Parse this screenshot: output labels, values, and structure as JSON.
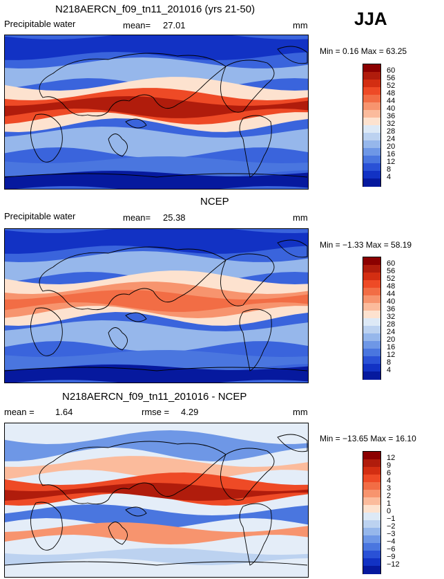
{
  "season": "JJA",
  "panels": [
    {
      "title": "N218AERCN_f09_tn11_201016 (yrs 21-50)",
      "left_label": "Precipitable water",
      "mid_label": "mean=",
      "mid_value": "27.01",
      "right_label": "",
      "right_value": "",
      "units": "mm",
      "minmax": "Min =   0.16 Max =  63.25",
      "colorbar": {
        "levels": [
          "60",
          "56",
          "52",
          "48",
          "44",
          "40",
          "36",
          "32",
          "28",
          "24",
          "20",
          "16",
          "12",
          "8",
          "4"
        ],
        "colors": [
          "#8b0000",
          "#b01c0c",
          "#d32e12",
          "#ee4a26",
          "#f26d45",
          "#f7946e",
          "#fbbb9c",
          "#fde2cf",
          "#dde9f6",
          "#bcd2f0",
          "#96b7eb",
          "#6e97e6",
          "#4a76df",
          "#2a51d6",
          "#1232c4",
          "#06199e"
        ]
      },
      "map": {
        "base": "#3a64dc",
        "kind": "model"
      }
    },
    {
      "title": "NCEP",
      "left_label": "Precipitable water",
      "mid_label": "mean=",
      "mid_value": "25.38",
      "right_label": "",
      "right_value": "",
      "units": "mm",
      "minmax": "Min =  −1.33 Max =  58.19",
      "colorbar": {
        "levels": [
          "60",
          "56",
          "52",
          "48",
          "44",
          "40",
          "36",
          "32",
          "28",
          "24",
          "20",
          "16",
          "12",
          "8",
          "4"
        ],
        "colors": [
          "#8b0000",
          "#b01c0c",
          "#d32e12",
          "#ee4a26",
          "#f26d45",
          "#f7946e",
          "#fbbb9c",
          "#fde2cf",
          "#dde9f6",
          "#bcd2f0",
          "#96b7eb",
          "#6e97e6",
          "#4a76df",
          "#2a51d6",
          "#1232c4",
          "#06199e"
        ]
      },
      "map": {
        "base": "#3a64dc",
        "kind": "obs"
      }
    },
    {
      "title": "N218AERCN_f09_tn11_201016 - NCEP",
      "left_label": "mean =",
      "left_value": "1.64",
      "mid_label": "rmse =",
      "mid_value": "4.29",
      "units": "mm",
      "minmax": "Min = −13.65 Max =  16.10",
      "colorbar": {
        "levels": [
          "12",
          "9",
          "6",
          "4",
          "3",
          "2",
          "1",
          "0",
          "−1",
          "−2",
          "−3",
          "−4",
          "−6",
          "−9",
          "−12"
        ],
        "colors": [
          "#8b0000",
          "#b01c0c",
          "#d32e12",
          "#ee4a26",
          "#f26d45",
          "#f7946e",
          "#fbbb9c",
          "#fde2cf",
          "#dde9f6",
          "#bcd2f0",
          "#96b7eb",
          "#6e97e6",
          "#4a76df",
          "#2a51d6",
          "#1232c4",
          "#06199e"
        ]
      },
      "map": {
        "base": "#e4edf8",
        "kind": "diff"
      }
    }
  ]
}
